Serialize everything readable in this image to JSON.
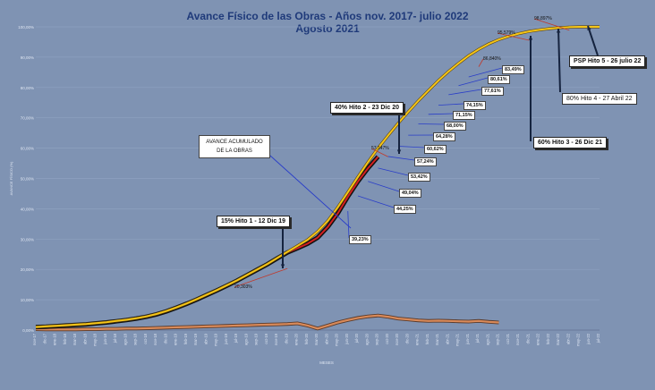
{
  "chart_data": {
    "type": "line",
    "title": "Avance Físico de las Obras - Años nov. 2017- julio 2022",
    "subtitle": "Agosto 2021",
    "xlabel": "MESES",
    "ylabel": "AVANCE FÍSICO (%)",
    "ylim": [
      0,
      100
    ],
    "yticks": [
      "0,00%",
      "10,00%",
      "20,00%",
      "30,00%",
      "40,00%",
      "50,00%",
      "60,00%",
      "70,00%",
      "80,00%",
      "90,00%",
      "100,00%"
    ],
    "x": [
      "nov-17",
      "dic-17",
      "ene-18",
      "feb-18",
      "mar-18",
      "abr-18",
      "may-18",
      "jun-18",
      "jul-18",
      "ago-18",
      "sep-18",
      "oct-18",
      "nov-18",
      "dic-18",
      "ene-19",
      "feb-19",
      "mar-19",
      "abr-19",
      "may-19",
      "jun-19",
      "jul-19",
      "ago-19",
      "sep-19",
      "oct-19",
      "nov-19",
      "dic-19",
      "ene-20",
      "feb-20",
      "mar-20",
      "abr-20",
      "may-20",
      "jun-20",
      "jul-20",
      "ago-20",
      "sep-20",
      "oct-20",
      "nov-20",
      "dic-20",
      "ene-21",
      "feb-21",
      "mar-21",
      "abr-21",
      "may-21",
      "jun-21",
      "jul-21",
      "ago-21",
      "sep-21",
      "oct-21",
      "nov-21",
      "dic-21",
      "ene-22",
      "feb-22",
      "mar-22",
      "abr-22",
      "may-22",
      "jun-22",
      "jul-22"
    ],
    "series": [
      {
        "name": "planned",
        "color": "#f5c518",
        "values": [
          1.0,
          1.2,
          1.4,
          1.6,
          1.8,
          2.0,
          2.3,
          2.6,
          3.0,
          3.4,
          3.9,
          4.5,
          5.3,
          6.3,
          7.5,
          8.8,
          10.2,
          11.7,
          13.2,
          14.8,
          16.4,
          18.2,
          20.0,
          21.8,
          23.8,
          25.8,
          27.8,
          29.8,
          32.5,
          36.0,
          40.5,
          45.5,
          50.5,
          55.4,
          60.0,
          64.2,
          68.2,
          72.0,
          75.6,
          79.0,
          82.3,
          85.3,
          88.0,
          90.5,
          92.6,
          94.4,
          95.8,
          96.9,
          97.8,
          98.5,
          99.0,
          99.4,
          99.7,
          99.9,
          100.0,
          100.0,
          100.0
        ]
      },
      {
        "name": "actual",
        "color": "#111111",
        "values": [
          1.0,
          1.1,
          1.3,
          1.5,
          1.7,
          1.9,
          2.2,
          2.5,
          2.9,
          3.3,
          3.8,
          4.4,
          5.2,
          6.2,
          7.4,
          8.7,
          10.1,
          11.6,
          13.1,
          14.7,
          16.3,
          18.1,
          19.9,
          21.7,
          23.7,
          25.6,
          27.0,
          28.5,
          30.5,
          34.0,
          38.5,
          44.0,
          49.0,
          53.4,
          57.2,
          null,
          null,
          null,
          null,
          null,
          null,
          null,
          null,
          null,
          null,
          null,
          null,
          null,
          null,
          null,
          null,
          null,
          null,
          null,
          null,
          null,
          null
        ]
      },
      {
        "name": "monthly",
        "color": "#d98a5a",
        "values": [
          0.3,
          0.2,
          0.2,
          0.2,
          0.2,
          0.3,
          0.3,
          0.4,
          0.4,
          0.5,
          0.5,
          0.6,
          0.7,
          0.8,
          0.9,
          1.0,
          1.1,
          1.2,
          1.3,
          1.4,
          1.5,
          1.6,
          1.7,
          1.8,
          1.9,
          2.0,
          2.2,
          1.5,
          0.5,
          1.5,
          2.5,
          3.3,
          4.0,
          4.5,
          4.8,
          4.4,
          3.8,
          3.5,
          3.2,
          3.0,
          3.1,
          3.0,
          2.9,
          2.8,
          3.0,
          2.7,
          2.5,
          null,
          null,
          null,
          null,
          null,
          null,
          null,
          null,
          null,
          null
        ]
      }
    ],
    "point_labels": [
      {
        "text": "20,303%",
        "x": "dic-19",
        "y": 20.3
      },
      {
        "text": "39,23%",
        "x": "jun-20",
        "y": 39.23
      },
      {
        "text": "44,25%",
        "x": "jul-20",
        "y": 44.25
      },
      {
        "text": "49,04%",
        "x": "ago-20",
        "y": 49.04
      },
      {
        "text": "53,42%",
        "x": "sep-20",
        "y": 53.42
      },
      {
        "text": "57,147%",
        "x": "oct-20",
        "y": 57.147
      },
      {
        "text": "57,24%",
        "x": "oct-20",
        "y": 57.24
      },
      {
        "text": "60,62%",
        "x": "nov-20",
        "y": 60.62
      },
      {
        "text": "64,28%",
        "x": "dic-20",
        "y": 64.28
      },
      {
        "text": "68,00%",
        "x": "ene-21",
        "y": 68.0
      },
      {
        "text": "71,15%",
        "x": "feb-21",
        "y": 71.15
      },
      {
        "text": "74,15%",
        "x": "mar-21",
        "y": 74.15
      },
      {
        "text": "77,61%",
        "x": "abr-21",
        "y": 77.61
      },
      {
        "text": "80,61%",
        "x": "may-21",
        "y": 80.61
      },
      {
        "text": "83,49%",
        "x": "jun-21",
        "y": 83.49
      },
      {
        "text": "86,840%",
        "x": "jul-21",
        "y": 86.84
      },
      {
        "text": "95,579%",
        "x": "dic-21",
        "y": 95.579
      },
      {
        "text": "98,897%",
        "x": "abr-22",
        "y": 98.897
      }
    ],
    "milestones": [
      {
        "text": "15% Hito 1 - 12 Dic 19"
      },
      {
        "text": "40% Hito 2 - 23 Dic 20"
      },
      {
        "text": "60% Hito 3 - 26 Dic 21"
      },
      {
        "text": "80% Hito 4 - 27 Abril 22"
      },
      {
        "text": "PSP Hito 5 - 26 julio 22"
      }
    ],
    "annotation": {
      "line1": "AVANCE ACUMULADO",
      "line2": "DE LA OBRAS"
    }
  }
}
